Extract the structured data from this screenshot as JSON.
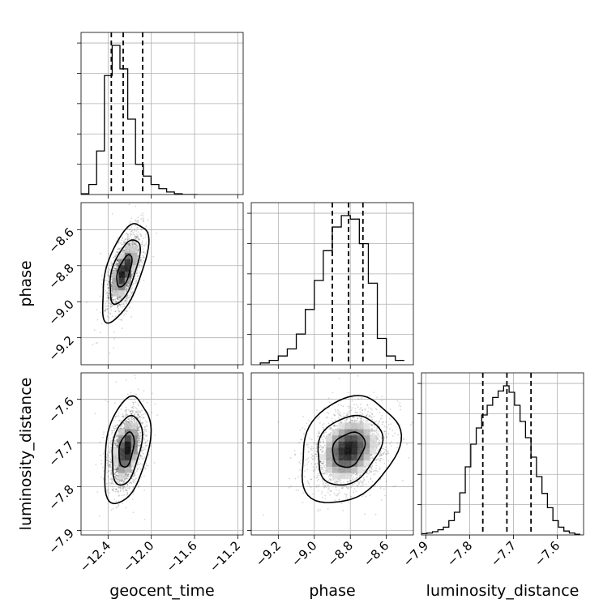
{
  "chart_data": {
    "type": "corner",
    "parameters": [
      {
        "name": "geocent_time",
        "xlabel": "geocent_time",
        "ylabel": "",
        "range": [
          -12.65,
          -11.15
        ],
        "ticks": [
          -12.4,
          -12.0,
          -11.6,
          -11.2
        ],
        "tick_labels": [
          "−12.4",
          "−12.0",
          "−11.6",
          "−11.2"
        ],
        "quantiles": [
          -12.37,
          -12.26,
          -12.08
        ],
        "hist_bins": [
          -12.65,
          -12.578,
          -12.506,
          -12.434,
          -12.362,
          -12.29,
          -12.218,
          -12.146,
          -12.074,
          -12.002,
          -11.93,
          -11.858,
          -11.786,
          -11.714,
          -11.642
        ],
        "hist_counts": [
          1,
          12,
          52,
          142,
          178,
          150,
          90,
          36,
          22,
          12,
          7,
          3,
          1,
          0,
          0
        ]
      },
      {
        "name": "phase",
        "xlabel": "phase",
        "ylabel": "phase",
        "range": [
          -9.35,
          -8.45
        ],
        "ticks": [
          -9.2,
          -9.0,
          -8.8,
          -8.6
        ],
        "tick_labels": [
          "−9.2",
          "−9.0",
          "−8.8",
          "−8.6"
        ],
        "quantiles": [
          -8.9,
          -8.81,
          -8.73
        ],
        "hist_bins": [
          -9.3,
          -9.25,
          -9.2,
          -9.15,
          -9.1,
          -9.05,
          -9.0,
          -8.95,
          -8.9,
          -8.85,
          -8.8,
          -8.75,
          -8.7,
          -8.65,
          -8.6,
          -8.55,
          -8.5
        ],
        "hist_counts": [
          2,
          5,
          10,
          18,
          35,
          63,
          96,
          130,
          157,
          170,
          166,
          138,
          93,
          30,
          10,
          5
        ]
      },
      {
        "name": "luminosity_distance",
        "xlabel": "luminosity_distance",
        "ylabel": "luminosity_distance",
        "range": [
          -7.91,
          -7.54
        ],
        "ticks": [
          -7.9,
          -7.8,
          -7.7,
          -7.6
        ],
        "tick_labels": [
          "−7.9",
          "−7.8",
          "−7.7",
          "−7.6"
        ],
        "quantiles": [
          -7.77,
          -7.715,
          -7.66
        ],
        "hist_bins": [
          -7.91,
          -7.8975,
          -7.885,
          -7.8725,
          -7.86,
          -7.8475,
          -7.835,
          -7.8225,
          -7.81,
          -7.7975,
          -7.785,
          -7.7725,
          -7.76,
          -7.7475,
          -7.735,
          -7.7225,
          -7.71,
          -7.6975,
          -7.685,
          -7.6725,
          -7.66,
          -7.6475,
          -7.635,
          -7.6225,
          -7.61,
          -7.5975,
          -7.585,
          -7.5725,
          -7.56,
          -7.5475
        ],
        "hist_counts": [
          2,
          3,
          5,
          8,
          12,
          22,
          35,
          65,
          105,
          140,
          165,
          185,
          200,
          212,
          222,
          230,
          220,
          200,
          175,
          150,
          120,
          90,
          64,
          42,
          22,
          12,
          6,
          3,
          1
        ]
      }
    ],
    "pairs": [
      {
        "x": "geocent_time",
        "y": "phase",
        "mean": [
          -12.25,
          -8.83
        ],
        "sigma": [
          0.07,
          0.09
        ],
        "rho": 0.6,
        "levels": [
          0.39,
          0.86,
          0.99
        ]
      },
      {
        "x": "geocent_time",
        "y": "luminosity_distance",
        "mean": [
          -12.23,
          -7.715
        ],
        "sigma": [
          0.07,
          0.04
        ],
        "rho": 0.35,
        "levels": [
          0.39,
          0.86,
          0.99
        ]
      },
      {
        "x": "phase",
        "y": "luminosity_distance",
        "mean": [
          -8.81,
          -7.715
        ],
        "sigma": [
          0.09,
          0.04
        ],
        "rho": 0.25,
        "levels": [
          0.39,
          0.86,
          0.99
        ]
      }
    ],
    "grid": true
  }
}
